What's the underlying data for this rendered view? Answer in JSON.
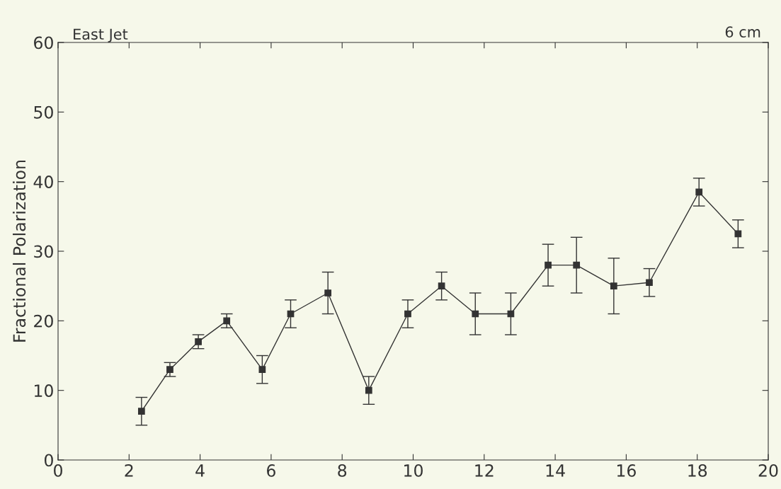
{
  "chart_data": {
    "type": "line",
    "title": "East Jet",
    "ylabel": "Fractional Polarization",
    "annotations": [
      "6 cm"
    ],
    "x": [
      2.35,
      3.15,
      3.95,
      4.75,
      5.75,
      6.55,
      7.6,
      8.75,
      9.85,
      10.8,
      11.75,
      12.75,
      13.8,
      14.6,
      15.65,
      16.65,
      18.05,
      19.15
    ],
    "series": [
      {
        "color": "#333333",
        "values": [
          7,
          13,
          17,
          20,
          13,
          21,
          24,
          10,
          21,
          25,
          21,
          21,
          28,
          28,
          25,
          25.5,
          38.5,
          32.5
        ],
        "errors": [
          2,
          1,
          1,
          1,
          2,
          2,
          3,
          2,
          2,
          2,
          3,
          3,
          3,
          4,
          4,
          2,
          2,
          2
        ]
      }
    ],
    "xlim": [
      0,
      20
    ],
    "xticks": [
      0,
      2,
      4,
      6,
      8,
      10,
      12,
      14,
      16,
      18,
      20
    ],
    "ylim": [
      0,
      60
    ],
    "yticks": [
      0,
      10,
      20,
      30,
      40,
      50,
      60
    ],
    "marker": "square",
    "line_style": "solid",
    "grid": false,
    "legend": false
  }
}
